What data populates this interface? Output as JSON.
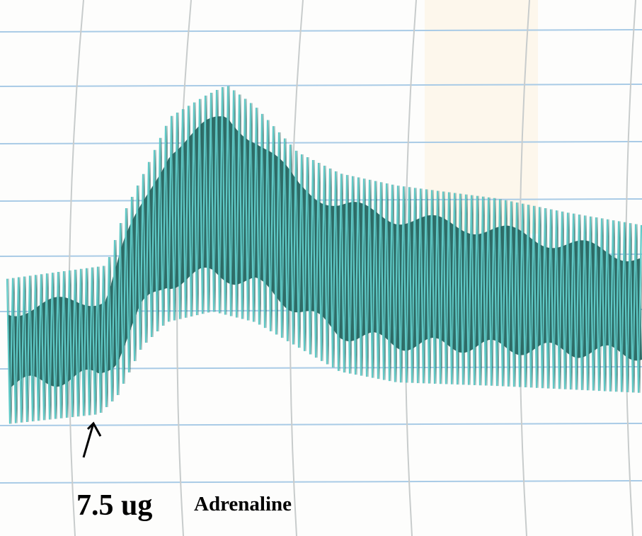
{
  "annotation": {
    "dose": "7.5 ug",
    "drug": "Adrenaline"
  }
}
